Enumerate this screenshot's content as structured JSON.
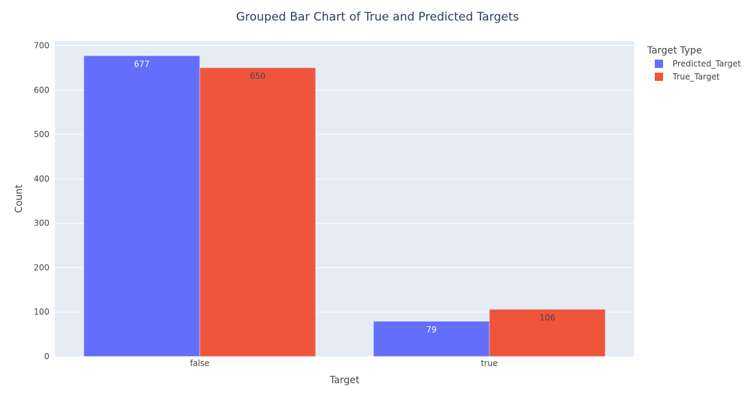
{
  "chart_data": {
    "type": "bar",
    "title": "Grouped Bar Chart of True and Predicted Targets",
    "xlabel": "Target",
    "ylabel": "Count",
    "categories": [
      "false",
      "true"
    ],
    "series": [
      {
        "name": "Predicted_Target",
        "values": [
          677,
          79
        ],
        "color": "#636efa",
        "label_color": "#ffffff"
      },
      {
        "name": "True_Target",
        "values": [
          650,
          106
        ],
        "color": "#ef553b",
        "label_color": "#444444"
      }
    ],
    "ylim": [
      0,
      710
    ],
    "yticks": [
      0,
      100,
      200,
      300,
      400,
      500,
      600,
      700
    ],
    "legend": {
      "title": "Target Type",
      "placement": "top-right"
    },
    "grid": true,
    "colors": {
      "plot_background": "#e5ecf6",
      "grid": "#ffffff",
      "text": "#444444",
      "title": "#2a3f5f"
    }
  }
}
